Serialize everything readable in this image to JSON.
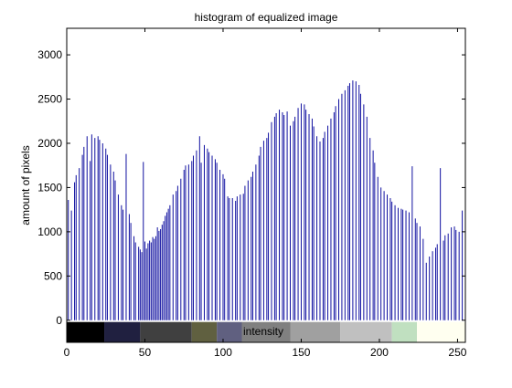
{
  "chart_data": {
    "type": "bar",
    "title": "histogram of equalized image",
    "xlabel": "intensity",
    "ylabel": "amount of pixels",
    "xlim": [
      0,
      255
    ],
    "ylim": [
      -250,
      3300
    ],
    "x_ticks": [
      0,
      50,
      100,
      150,
      200,
      250
    ],
    "y_ticks": [
      0,
      500,
      1000,
      1500,
      2000,
      2500,
      3000
    ],
    "grid": false,
    "bar_color": "#1010a0",
    "colorbar": [
      {
        "from": 0,
        "to": 24,
        "color": "#000000"
      },
      {
        "from": 24,
        "to": 47,
        "color": "#202040"
      },
      {
        "from": 47,
        "to": 80,
        "color": "#404040"
      },
      {
        "from": 80,
        "to": 96,
        "color": "#606040"
      },
      {
        "from": 96,
        "to": 112,
        "color": "#606080"
      },
      {
        "from": 112,
        "to": 143,
        "color": "#808080"
      },
      {
        "from": 143,
        "to": 175,
        "color": "#a0a0a0"
      },
      {
        "from": 175,
        "to": 208,
        "color": "#c0c0c0"
      },
      {
        "from": 208,
        "to": 224,
        "color": "#c0e0c0"
      },
      {
        "from": 224,
        "to": 255,
        "color": "#fffff0"
      }
    ],
    "series": [
      {
        "x": [
          0,
          1,
          3,
          5,
          6,
          8,
          10,
          11,
          13,
          15,
          16,
          18,
          20,
          21,
          23,
          25,
          26,
          28,
          30,
          31,
          33,
          35,
          36,
          38,
          40,
          41,
          43,
          44,
          46,
          47,
          48,
          49,
          50,
          51,
          52,
          53,
          54,
          55,
          56,
          57,
          58,
          59,
          60,
          61,
          62,
          63,
          64,
          65,
          66,
          68,
          70,
          71,
          73,
          75,
          76,
          78,
          80,
          81,
          83,
          85,
          86,
          88,
          90,
          91,
          93,
          95,
          96,
          98,
          100,
          101,
          103,
          104,
          106,
          108,
          109,
          111,
          113,
          114,
          116,
          118,
          119,
          121,
          123,
          124,
          126,
          128,
          129,
          131,
          133,
          134,
          136,
          138,
          139,
          141,
          143,
          145,
          146,
          148,
          150,
          152,
          153,
          155,
          157,
          158,
          160,
          162,
          164,
          165,
          167,
          169,
          171,
          172,
          174,
          176,
          178,
          180,
          181,
          183,
          185,
          187,
          188,
          190,
          192,
          194,
          196,
          197,
          199,
          201,
          203,
          205,
          207,
          208,
          210,
          212,
          214,
          215,
          217,
          219,
          221,
          223,
          224,
          226,
          228,
          230,
          232,
          234,
          236,
          237,
          239,
          241,
          242,
          244,
          246,
          248,
          249,
          251,
          253,
          255
        ],
        "values": [
          1120,
          1360,
          1240,
          1560,
          1640,
          1720,
          1870,
          1960,
          2080,
          1800,
          2100,
          2060,
          2080,
          2040,
          2000,
          1940,
          1870,
          1760,
          1680,
          1580,
          1420,
          1300,
          1250,
          1880,
          1200,
          1100,
          950,
          880,
          830,
          800,
          770,
          1790,
          890,
          810,
          870,
          900,
          880,
          940,
          920,
          950,
          1050,
          1010,
          1030,
          1080,
          1120,
          1180,
          1220,
          1260,
          1300,
          1420,
          1460,
          1520,
          1600,
          1700,
          1750,
          1760,
          1800,
          1860,
          1920,
          2080,
          1780,
          1980,
          1940,
          1900,
          1860,
          1820,
          1780,
          1700,
          1650,
          1600,
          1400,
          1380,
          1380,
          1350,
          1400,
          1420,
          1430,
          1520,
          1580,
          1620,
          1680,
          1760,
          1860,
          1960,
          2030,
          2060,
          2120,
          2240,
          2300,
          2340,
          2380,
          2350,
          2320,
          2360,
          2200,
          2250,
          2300,
          2400,
          2450,
          2440,
          2380,
          2330,
          2280,
          2190,
          2080,
          2020,
          2060,
          2130,
          2200,
          2280,
          2350,
          2420,
          2500,
          2560,
          2600,
          2650,
          2680,
          2710,
          2700,
          2660,
          2560,
          2440,
          2300,
          2060,
          1920,
          1780,
          1620,
          1500,
          1460,
          1420,
          1380,
          1340,
          1300,
          1270,
          1260,
          1250,
          1240,
          1220,
          1740,
          1150,
          1100,
          1060,
          920,
          650,
          720,
          780,
          820,
          860,
          1720,
          900,
          960,
          980,
          1050,
          1060,
          1020,
          1000,
          1240,
          940
        ]
      }
    ]
  }
}
